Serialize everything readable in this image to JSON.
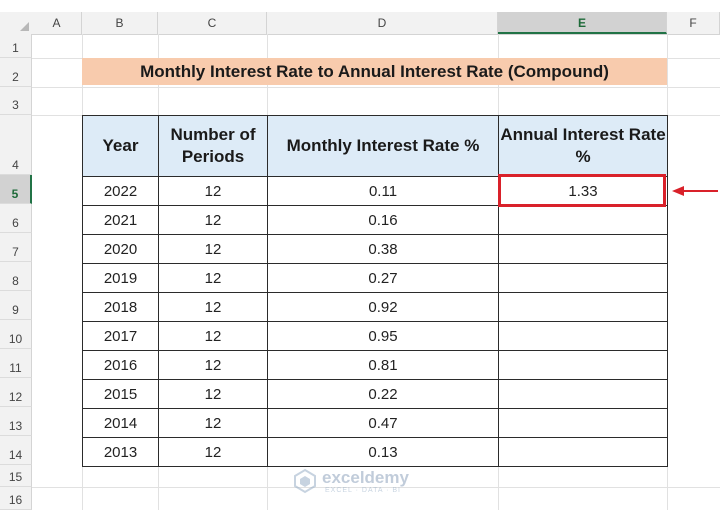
{
  "sheet": {
    "columns": [
      "A",
      "B",
      "C",
      "D",
      "E",
      "F"
    ],
    "selected_column": "E",
    "rows": [
      "1",
      "2",
      "3",
      "4",
      "5",
      "6",
      "7",
      "8",
      "9",
      "10",
      "11",
      "12",
      "13",
      "14",
      "15",
      "16"
    ],
    "selected_row": "5"
  },
  "title": "Monthly Interest Rate to Annual Interest Rate (Compound)",
  "table": {
    "headers": [
      "Year",
      "Number of Periods",
      "Monthly Interest Rate %",
      "Annual Interest Rate %"
    ],
    "rows": [
      [
        "2022",
        "12",
        "0.11",
        "1.33"
      ],
      [
        "2021",
        "12",
        "0.16",
        ""
      ],
      [
        "2020",
        "12",
        "0.38",
        ""
      ],
      [
        "2019",
        "12",
        "0.27",
        ""
      ],
      [
        "2018",
        "12",
        "0.92",
        ""
      ],
      [
        "2017",
        "12",
        "0.95",
        ""
      ],
      [
        "2016",
        "12",
        "0.81",
        ""
      ],
      [
        "2015",
        "12",
        "0.22",
        ""
      ],
      [
        "2014",
        "12",
        "0.47",
        ""
      ],
      [
        "2013",
        "12",
        "0.13",
        ""
      ]
    ]
  },
  "highlight": {
    "border_color": "#d9212a"
  },
  "colors": {
    "title_fill": "#f8cbad",
    "header_fill": "#ddebf7"
  },
  "watermark": {
    "name": "exceldemy",
    "tagline": "EXCEL · DATA · BI"
  }
}
